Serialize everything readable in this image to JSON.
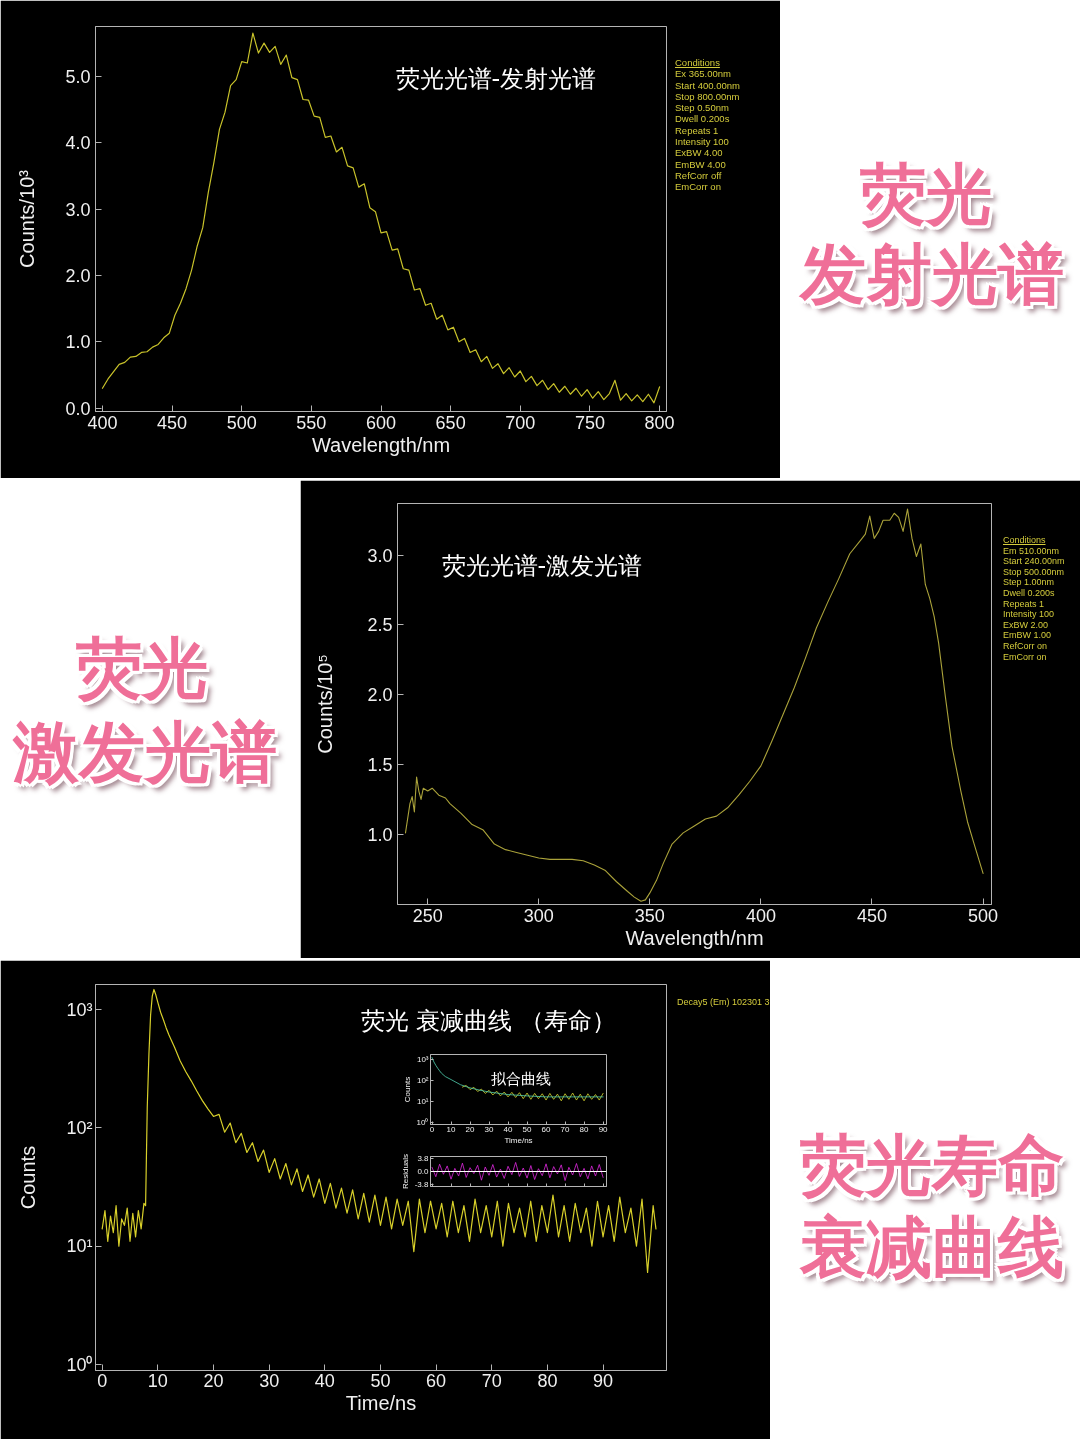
{
  "chart_data": [
    {
      "type": "line",
      "title": "荧光光谱-发射光谱",
      "xlabel": "Wavelength/nm",
      "ylabel": "Counts/10³",
      "x": [
        400,
        404,
        408,
        412,
        416,
        420,
        424,
        428,
        432,
        436,
        440,
        444,
        448,
        452,
        456,
        460,
        464,
        468,
        472,
        476,
        480,
        484,
        488,
        492,
        496,
        500,
        504,
        508,
        512,
        516,
        520,
        524,
        528,
        532,
        536,
        540,
        544,
        548,
        552,
        556,
        560,
        564,
        568,
        572,
        576,
        580,
        584,
        588,
        592,
        596,
        600,
        604,
        608,
        612,
        616,
        620,
        624,
        628,
        632,
        636,
        640,
        644,
        648,
        652,
        656,
        660,
        664,
        668,
        672,
        676,
        680,
        684,
        688,
        692,
        696,
        700,
        704,
        708,
        712,
        716,
        720,
        724,
        728,
        732,
        736,
        740,
        744,
        748,
        752,
        756,
        760,
        764,
        768,
        772,
        776,
        780,
        784,
        788,
        792,
        796,
        800
      ],
      "series": [
        {
          "color": "#c8c22a",
          "values": [
            0.3,
            0.44,
            0.55,
            0.66,
            0.69,
            0.77,
            0.78,
            0.84,
            0.85,
            0.92,
            0.96,
            1.06,
            1.13,
            1.4,
            1.58,
            1.8,
            2.08,
            2.44,
            2.72,
            3.25,
            3.7,
            4.2,
            4.46,
            4.86,
            4.95,
            5.22,
            5.2,
            5.65,
            5.35,
            5.5,
            5.36,
            5.45,
            5.18,
            5.32,
            4.98,
            4.95,
            4.65,
            4.64,
            4.4,
            4.38,
            4.08,
            4.1,
            3.86,
            3.93,
            3.65,
            3.62,
            3.33,
            3.38,
            3.02,
            2.96,
            2.64,
            2.66,
            2.38,
            2.4,
            2.1,
            2.08,
            1.78,
            1.8,
            1.55,
            1.58,
            1.34,
            1.4,
            1.18,
            1.22,
            1.0,
            1.05,
            0.84,
            0.88,
            0.7,
            0.78,
            0.6,
            0.67,
            0.52,
            0.61,
            0.47,
            0.56,
            0.4,
            0.48,
            0.34,
            0.42,
            0.28,
            0.37,
            0.24,
            0.33,
            0.21,
            0.3,
            0.18,
            0.28,
            0.15,
            0.25,
            0.13,
            0.22,
            0.42,
            0.12,
            0.22,
            0.11,
            0.2,
            0.1,
            0.21,
            0.08,
            0.32
          ]
        }
      ],
      "xlim": [
        395,
        805
      ],
      "ylim": [
        -0.05,
        5.75
      ],
      "xticks": [
        400,
        450,
        500,
        550,
        600,
        650,
        700,
        750,
        800
      ],
      "yticks": [
        {
          "value": 0,
          "label": "0.0"
        },
        {
          "value": 1,
          "label": "1.0"
        },
        {
          "value": 2,
          "label": "2.0"
        },
        {
          "value": 3,
          "label": "3.0"
        },
        {
          "value": 4,
          "label": "4.0"
        },
        {
          "value": 5,
          "label": "5.0"
        }
      ],
      "grid": false,
      "annotations": [
        "Conditions",
        "Ex 365.00nm",
        "Start 400.00nm",
        "Stop 800.00nm",
        "Step 0.50nm",
        "Dwell 0.200s",
        "Repeats 1",
        "Intensity 100",
        "ExBW 4.00",
        "EmBW 4.00",
        "RefCorr off",
        "EmCorr on",
        "荧光",
        "发射光谱"
      ]
    },
    {
      "type": "line",
      "title": "荧光光谱-激发光谱",
      "xlabel": "Wavelength/nm",
      "ylabel": "Counts/10⁵",
      "x": [
        240,
        242,
        243,
        244,
        245,
        246,
        247,
        248,
        250,
        252,
        255,
        258,
        260,
        265,
        270,
        275,
        280,
        285,
        290,
        295,
        300,
        305,
        310,
        315,
        320,
        325,
        330,
        335,
        340,
        343,
        346,
        348,
        350,
        353,
        356,
        360,
        365,
        370,
        375,
        380,
        385,
        390,
        395,
        400,
        405,
        410,
        415,
        420,
        425,
        430,
        435,
        440,
        445,
        447,
        449,
        451,
        453,
        455,
        458,
        460,
        462,
        464,
        466,
        468,
        470,
        472,
        474,
        476,
        478,
        480,
        483,
        486,
        490,
        493,
        496,
        500
      ],
      "series": [
        {
          "color": "#aaa23a",
          "values": [
            1.01,
            1.22,
            1.27,
            1.16,
            1.41,
            1.31,
            1.25,
            1.33,
            1.31,
            1.33,
            1.28,
            1.26,
            1.22,
            1.15,
            1.07,
            1.03,
            0.93,
            0.89,
            0.87,
            0.85,
            0.83,
            0.82,
            0.82,
            0.82,
            0.81,
            0.78,
            0.74,
            0.66,
            0.59,
            0.55,
            0.52,
            0.53,
            0.58,
            0.67,
            0.79,
            0.93,
            1.01,
            1.06,
            1.11,
            1.13,
            1.19,
            1.28,
            1.38,
            1.49,
            1.67,
            1.86,
            2.05,
            2.26,
            2.48,
            2.66,
            2.83,
            3.01,
            3.11,
            3.15,
            3.28,
            3.12,
            3.17,
            3.25,
            3.25,
            3.3,
            3.27,
            3.17,
            3.33,
            3.12,
            2.99,
            3.08,
            2.79,
            2.69,
            2.56,
            2.37,
            1.99,
            1.63,
            1.31,
            1.09,
            0.93,
            0.72
          ]
        }
      ],
      "xlim": [
        236.4,
        503.8
      ],
      "ylim": [
        0.497,
        3.37
      ],
      "xticks": [
        250,
        300,
        350,
        400,
        450,
        500
      ],
      "yticks": [
        {
          "value": 1,
          "label": "1.0"
        },
        {
          "value": 1.5,
          "label": "1.5"
        },
        {
          "value": 2,
          "label": "2.0"
        },
        {
          "value": 2.5,
          "label": "2.5"
        },
        {
          "value": 3,
          "label": "3.0"
        }
      ],
      "grid": false,
      "annotations": [
        "Conditions",
        "Em 510.00nm",
        "Start 240.00nm",
        "Stop 500.00nm",
        "Step 1.00nm",
        "Dwell 0.200s",
        "Repeats 1",
        "Intensity 100",
        "ExBW 2.00",
        "EmBW 1.00",
        "RefCorr on",
        "EmCorr on",
        "荧光",
        "激发光谱"
      ]
    },
    {
      "type": "line",
      "title": "荧光 衰减曲线 （寿命）",
      "xlabel": "Time/ns",
      "ylabel": "Counts",
      "log": true,
      "x": [
        0,
        0.5,
        1,
        1.5,
        2,
        2.5,
        3,
        3.5,
        4,
        4.5,
        5,
        5.5,
        6,
        6.5,
        7,
        7.5,
        7.8,
        8.1,
        8.4,
        8.7,
        9,
        9.3,
        9.6,
        10,
        10.5,
        11,
        11.5,
        12,
        13,
        14,
        15,
        16,
        17,
        18,
        19,
        20,
        21,
        22,
        23,
        24,
        25,
        26,
        27,
        28,
        29,
        30,
        31,
        32,
        33,
        34,
        35,
        36,
        37,
        38,
        39,
        40,
        41,
        42,
        43,
        44,
        45,
        46,
        47,
        48,
        49,
        50,
        51,
        52,
        53,
        54,
        55,
        56,
        57,
        58,
        59,
        60,
        61,
        62,
        63,
        64,
        65,
        66,
        67,
        68,
        69,
        70,
        71,
        72,
        73,
        74,
        75,
        76,
        77,
        78,
        79,
        80,
        81,
        82,
        83,
        84,
        85,
        86,
        87,
        88,
        89,
        90,
        91,
        92,
        93,
        94,
        95,
        96,
        97,
        98,
        99,
        99.5
      ],
      "series": [
        {
          "color": "#d8d02a",
          "values": [
            14,
            20,
            11,
            18,
            13,
            22,
            10,
            17,
            15,
            21,
            11,
            19,
            12,
            20,
            14,
            23,
            22,
            150,
            420,
            900,
            1300,
            1480,
            1350,
            1150,
            950,
            820,
            700,
            610,
            480,
            370,
            300,
            250,
            205,
            170,
            145,
            125,
            130,
            92,
            110,
            75,
            90,
            62,
            75,
            52,
            65,
            42,
            55,
            37,
            50,
            33,
            45,
            29,
            40,
            26,
            37,
            23,
            34,
            21,
            31,
            19,
            30,
            17,
            28,
            16,
            27,
            15,
            26,
            14,
            25,
            15,
            24,
            9,
            25,
            13,
            24,
            14,
            23,
            12,
            24,
            13,
            22,
            11,
            25,
            13,
            22,
            12,
            24,
            10,
            23,
            13,
            21,
            12,
            24,
            11,
            22,
            13,
            27,
            12,
            22,
            11,
            23,
            13,
            21,
            10,
            24,
            12,
            22,
            11,
            26,
            13,
            21,
            10,
            25,
            6,
            22,
            14
          ]
        }
      ],
      "xlim": [
        -1.2,
        101.4
      ],
      "ylim": [
        0.89,
        1630
      ],
      "xticks": [
        0,
        10,
        20,
        30,
        40,
        50,
        60,
        70,
        80,
        90
      ],
      "yticks": [
        {
          "value": 1,
          "label": "10⁰"
        },
        {
          "value": 10,
          "label": "10¹"
        },
        {
          "value": 100,
          "label": "10²"
        },
        {
          "value": 1000,
          "label": "10³"
        }
      ],
      "grid": false,
      "annotations": [
        "Decay5 (Em) 102301 3",
        "荧光寿命",
        "衰减曲线"
      ]
    },
    {
      "type": "line",
      "title": "拟合曲线",
      "xlabel": "Time/ns",
      "ylabel": "Counts",
      "log": true,
      "series": [
        {
          "color": "#d8d830",
          "x": [
            16,
            18,
            20,
            22,
            24,
            26,
            28,
            30,
            32,
            34,
            36,
            38,
            40,
            42,
            44,
            46,
            48,
            50,
            52,
            54,
            56,
            58,
            60,
            62,
            64,
            66,
            68,
            70,
            72,
            74,
            76,
            78,
            80,
            82,
            84,
            86,
            88,
            90
          ],
          "values": [
            50,
            60,
            38,
            49,
            31,
            40,
            25,
            35,
            21,
            32,
            19,
            29,
            17,
            28,
            16,
            27,
            14,
            26,
            13,
            25,
            14,
            24,
            12,
            25,
            13,
            23,
            11,
            24,
            13,
            26,
            12,
            23,
            11,
            24,
            13,
            22,
            12,
            25
          ]
        },
        {
          "color": "#50d0b0",
          "x": [
            0,
            1,
            2,
            3,
            4,
            5,
            7,
            10,
            15,
            20,
            25,
            30,
            40,
            50,
            60,
            70,
            80,
            90
          ],
          "values": [
            1300,
            800,
            550,
            400,
            300,
            230,
            160,
            115,
            65,
            46,
            36,
            29,
            22,
            19,
            17,
            17,
            17,
            17
          ]
        }
      ],
      "xlim": [
        -0.8,
        91.8
      ],
      "ylim": [
        0.81,
        1820
      ],
      "xticks": [
        0,
        10,
        20,
        30,
        40,
        50,
        60,
        70,
        80,
        90
      ],
      "yticks": [
        {
          "value": 1,
          "label": "10⁰"
        },
        {
          "value": 10,
          "label": "10¹"
        },
        {
          "value": 100,
          "label": "10²"
        },
        {
          "value": 1000,
          "label": "10³"
        }
      ],
      "grid": false
    },
    {
      "type": "line",
      "ylabel": "Residuals",
      "x": [
        0,
        2,
        4,
        6,
        8,
        10,
        12,
        14,
        16,
        18,
        20,
        22,
        24,
        26,
        28,
        30,
        32,
        34,
        36,
        38,
        40,
        42,
        44,
        46,
        48,
        50,
        52,
        54,
        56,
        58,
        60,
        62,
        64,
        66,
        68,
        70,
        72,
        74,
        76,
        78,
        80,
        82,
        84,
        86,
        88,
        90
      ],
      "series": [
        {
          "color": "#e028e0",
          "values": [
            1.2,
            -1.5,
            2.1,
            -0.8,
            1.6,
            -2.2,
            0.9,
            -1.3,
            2.4,
            -1.7,
            1.1,
            -0.6,
            1.8,
            -2.5,
            1.3,
            -1.1,
            2.0,
            -1.6,
            0.7,
            -2.0,
            1.5,
            -0.9,
            2.6,
            -1.4,
            1.0,
            -1.9,
            1.7,
            -2.3,
            0.8,
            -1.2,
            2.2,
            -1.8,
            1.4,
            -0.7,
            1.9,
            -2.6,
            1.2,
            -1.0,
            2.3,
            -1.5,
            0.9,
            -2.1,
            1.6,
            -1.3,
            2.0,
            -1.7
          ]
        }
      ],
      "xlim": [
        -0.8,
        91.8
      ],
      "ylim": [
        -4.3,
        4.3
      ],
      "xticks": [
        0,
        10,
        20,
        30,
        40,
        50,
        60,
        70,
        80,
        90
      ],
      "yticks": [
        {
          "value": 3.8,
          "label": "3.8"
        },
        {
          "value": 0,
          "label": "0.0"
        },
        {
          "value": -3.8,
          "label": "-3.8"
        }
      ],
      "tick_labels": "y",
      "grid": false,
      "ref_lines": [
        {
          "axis": "y",
          "value": 0,
          "color": "#ffffff"
        }
      ]
    }
  ]
}
